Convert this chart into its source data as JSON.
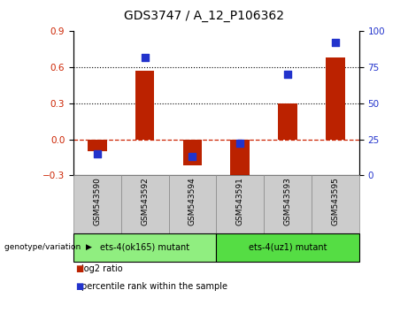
{
  "title": "GDS3747 / A_12_P106362",
  "categories": [
    "GSM543590",
    "GSM543592",
    "GSM543594",
    "GSM543591",
    "GSM543593",
    "GSM543595"
  ],
  "log2_ratio": [
    -0.1,
    0.57,
    -0.22,
    -0.34,
    0.3,
    0.68
  ],
  "percentile_rank": [
    15,
    82,
    13,
    22,
    70,
    92
  ],
  "left_ylim": [
    -0.3,
    0.9
  ],
  "right_ylim": [
    0,
    100
  ],
  "left_yticks": [
    -0.3,
    0.0,
    0.3,
    0.6,
    0.9
  ],
  "right_yticks": [
    0,
    25,
    50,
    75,
    100
  ],
  "hlines": [
    0.3,
    0.6
  ],
  "bar_color": "#bb2200",
  "dot_color": "#2233cc",
  "zero_line_color": "#cc2200",
  "group1_label": "ets-4(ok165) mutant",
  "group2_label": "ets-4(uz1) mutant",
  "group1_color": "#90ee80",
  "group2_color": "#55dd44",
  "group1_indices": [
    0,
    1,
    2
  ],
  "group2_indices": [
    3,
    4,
    5
  ],
  "genotype_label": "genotype/variation",
  "legend_log2": "log2 ratio",
  "legend_pct": "percentile rank within the sample",
  "tick_color_left": "#cc2200",
  "tick_color_right": "#2233cc",
  "bar_width": 0.4,
  "dot_size": 30,
  "label_bg": "#cccccc",
  "title_fontsize": 10
}
